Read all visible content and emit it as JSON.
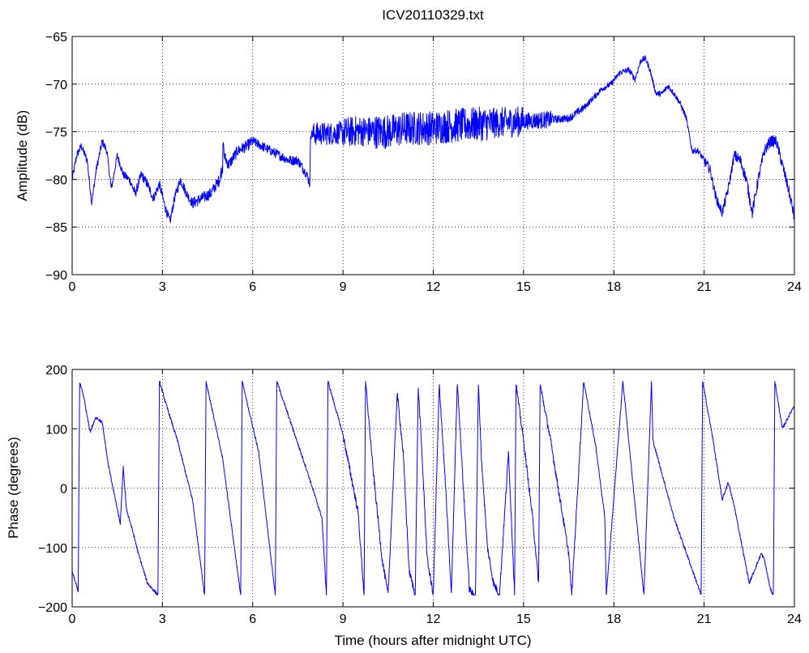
{
  "figure": {
    "title": "ICV20110329.txt",
    "line_color": "#0000ff",
    "grid": true
  },
  "chart_data": [
    {
      "type": "line",
      "title": "ICV20110329.txt",
      "xlabel": "",
      "ylabel": "Amplitude (dB)",
      "xlim": [
        0,
        24
      ],
      "ylim": [
        -90,
        -65
      ],
      "xticks": [
        "0",
        "3",
        "6",
        "9",
        "12",
        "15",
        "18",
        "21",
        "24"
      ],
      "yticks": [
        "−90",
        "−85",
        "−80",
        "−75",
        "−70",
        "−65"
      ],
      "series": [
        {
          "color": "#0000ff",
          "noise": [
            0.4,
            0.4,
            0.5,
            0.5,
            0.6,
            0.6,
            0.5,
            0.5,
            1.2,
            1.6,
            1.8,
            1.8,
            1.8,
            1.8,
            1.6,
            0.9,
            0.4,
            0.3,
            0.3,
            0.3,
            0.3,
            0.5,
            0.6,
            0.6
          ],
          "x": [
            0,
            0.15,
            0.3,
            0.5,
            0.65,
            0.8,
            1.0,
            1.15,
            1.3,
            1.5,
            1.7,
            1.9,
            2.1,
            2.3,
            2.5,
            2.7,
            2.9,
            3.1,
            3.25,
            3.4,
            3.6,
            3.8,
            4.0,
            4.3,
            4.6,
            4.9,
            5.05,
            5.2,
            5.5,
            5.8,
            6.0,
            6.3,
            6.6,
            6.9,
            7.2,
            7.5,
            7.8,
            7.9,
            7.92,
            8.2,
            8.5,
            9.0,
            9.5,
            10.0,
            10.5,
            11.0,
            11.5,
            12.0,
            12.5,
            13.0,
            13.5,
            14.0,
            14.5,
            15.0,
            15.5,
            16.0,
            16.5,
            17.0,
            17.3,
            17.6,
            17.9,
            18.2,
            18.5,
            18.7,
            18.9,
            19.05,
            19.2,
            19.4,
            19.6,
            19.8,
            20.0,
            20.2,
            20.4,
            20.6,
            20.8,
            21.0,
            21.2,
            21.4,
            21.6,
            21.8,
            22.0,
            22.2,
            22.4,
            22.6,
            22.8,
            23.0,
            23.2,
            23.4,
            23.6,
            23.8,
            24.0
          ],
          "values": [
            -80,
            -77.5,
            -76.5,
            -78,
            -82.5,
            -79,
            -76,
            -77,
            -81,
            -77.5,
            -79.5,
            -80,
            -81.5,
            -79.5,
            -80.5,
            -82,
            -80.5,
            -83,
            -84.5,
            -82,
            -80,
            -81.5,
            -82.5,
            -82,
            -81.5,
            -80,
            -77.5,
            -78.5,
            -77,
            -76.5,
            -76,
            -76.5,
            -77,
            -77.5,
            -78,
            -78,
            -79.5,
            -80.5,
            -75.3,
            -75.2,
            -75.2,
            -75.1,
            -74.9,
            -75,
            -75,
            -74.7,
            -74.6,
            -74.6,
            -74.4,
            -74.3,
            -74.2,
            -74.1,
            -74.0,
            -73.9,
            -73.8,
            -73.7,
            -73.6,
            -72.5,
            -71.5,
            -70.5,
            -70,
            -68.8,
            -68.5,
            -69.5,
            -67.5,
            -67.3,
            -68.5,
            -71,
            -71,
            -70.2,
            -71,
            -72,
            -73.5,
            -77,
            -77,
            -78,
            -79,
            -82,
            -83.5,
            -81,
            -77.5,
            -78,
            -80,
            -83.5,
            -80,
            -77,
            -76,
            -76,
            -78.5,
            -81,
            -84
          ]
        }
      ]
    },
    {
      "type": "line",
      "title": "",
      "xlabel": "Time (hours after midnight UTC)",
      "ylabel": "Phase (degrees)",
      "xlim": [
        0,
        24
      ],
      "ylim": [
        -200,
        200
      ],
      "xticks": [
        "0",
        "3",
        "6",
        "9",
        "12",
        "15",
        "18",
        "21",
        "24"
      ],
      "yticks": [
        "−200",
        "−100",
        "0",
        "100",
        "200"
      ],
      "series": [
        {
          "color": "#0000ff",
          "wrap": [
            -180,
            180
          ],
          "unwrapped_x": [
            0,
            0.2,
            0.25,
            0.4,
            0.5,
            0.6,
            0.8,
            1.0,
            1.2,
            1.4,
            1.6,
            1.7,
            1.8,
            2.0,
            2.2,
            2.5,
            2.85,
            2.9,
            3.1,
            3.5,
            4.0,
            4.4,
            4.45,
            5.0,
            5.6,
            5.65,
            6.2,
            6.75,
            6.8,
            7.2,
            7.8,
            8.3,
            8.45,
            8.5,
            9.0,
            9.5,
            9.7,
            9.75,
            10.0,
            10.3,
            10.5,
            10.8,
            11.0,
            11.2,
            11.4,
            11.5,
            11.6,
            11.8,
            12.0,
            12.2,
            12.4,
            12.6,
            12.8,
            13.0,
            13.2,
            13.4,
            13.5,
            13.6,
            13.8,
            14.0,
            14.2,
            14.5,
            14.7,
            14.75,
            15.0,
            15.3,
            15.5,
            15.55,
            15.9,
            16.5,
            16.6,
            17.0,
            17.4,
            17.7,
            17.75,
            18.3,
            19.0,
            19.25,
            19.3,
            20.0,
            20.9,
            20.95,
            21.3,
            21.6,
            21.8,
            22.0,
            22.5,
            22.9,
            23.0,
            23.2,
            23.3,
            23.35,
            23.6,
            23.8,
            24.0
          ],
          "unwrapped_values": [
            -140,
            -175,
            178,
            150,
            120,
            95,
            120,
            110,
            40,
            -10,
            -60,
            35,
            -35,
            -70,
            -110,
            -160,
            -180,
            180,
            145,
            80,
            -20,
            -180,
            180,
            50,
            -180,
            180,
            60,
            -180,
            180,
            120,
            30,
            -50,
            -180,
            180,
            90,
            -40,
            -180,
            180,
            30,
            -120,
            -180,
            160,
            60,
            -140,
            -180,
            170,
            80,
            -120,
            -180,
            175,
            10,
            -180,
            180,
            0,
            -170,
            -185,
            175,
            50,
            -100,
            -160,
            -180,
            60,
            -175,
            175,
            80,
            -50,
            -160,
            175,
            80,
            -110,
            -180,
            180,
            70,
            -50,
            -180,
            180,
            -180,
            180,
            80,
            -50,
            -180,
            180,
            80,
            -20,
            10,
            -30,
            -160,
            -110,
            -120,
            -170,
            -180,
            180,
            100,
            120,
            140
          ]
        }
      ]
    }
  ]
}
